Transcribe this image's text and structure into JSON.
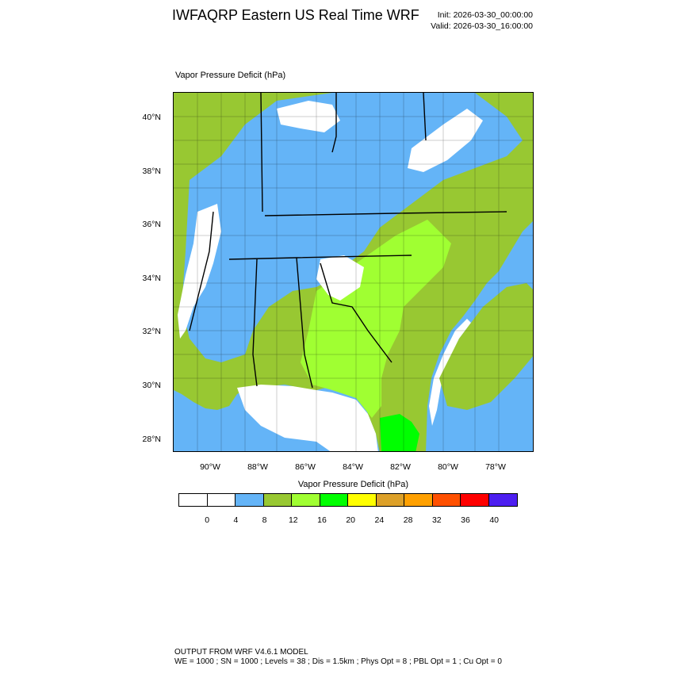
{
  "header": {
    "title": "IWFAQRP Eastern US Real Time WRF",
    "init": "Init: 2026-03-30_00:00:00",
    "valid": "Valid: 2026-03-30_16:00:00"
  },
  "field_label": "Vapor Pressure Deficit   (hPa)",
  "map": {
    "lat_labels": [
      "40°N",
      "38°N",
      "36°N",
      "34°N",
      "32°N",
      "30°N",
      "28°N"
    ],
    "lon_labels": [
      "90°W",
      "88°W",
      "86°W",
      "84°W",
      "82°W",
      "80°W",
      "78°W"
    ]
  },
  "colorbar": {
    "title": "Vapor Pressure Deficit  (hPa)",
    "colors": [
      "#ffffff",
      "#ffffff",
      "#64b4f7",
      "#98c832",
      "#a0ff32",
      "#00ff00",
      "#ffff00",
      "#dca028",
      "#ffa000",
      "#ff5000",
      "#ff0000",
      "#4c1ef0"
    ],
    "labels": [
      "0",
      "4",
      "8",
      "12",
      "16",
      "20",
      "24",
      "28",
      "32",
      "36",
      "40"
    ]
  },
  "footer": {
    "line1": "OUTPUT FROM WRF V4.6.1 MODEL",
    "line2": "WE = 1000 ; SN = 1000 ; Levels = 38 ; Dis = 1.5km ; Phys Opt = 8 ; PBL Opt = 1 ; Cu Opt = 0"
  }
}
